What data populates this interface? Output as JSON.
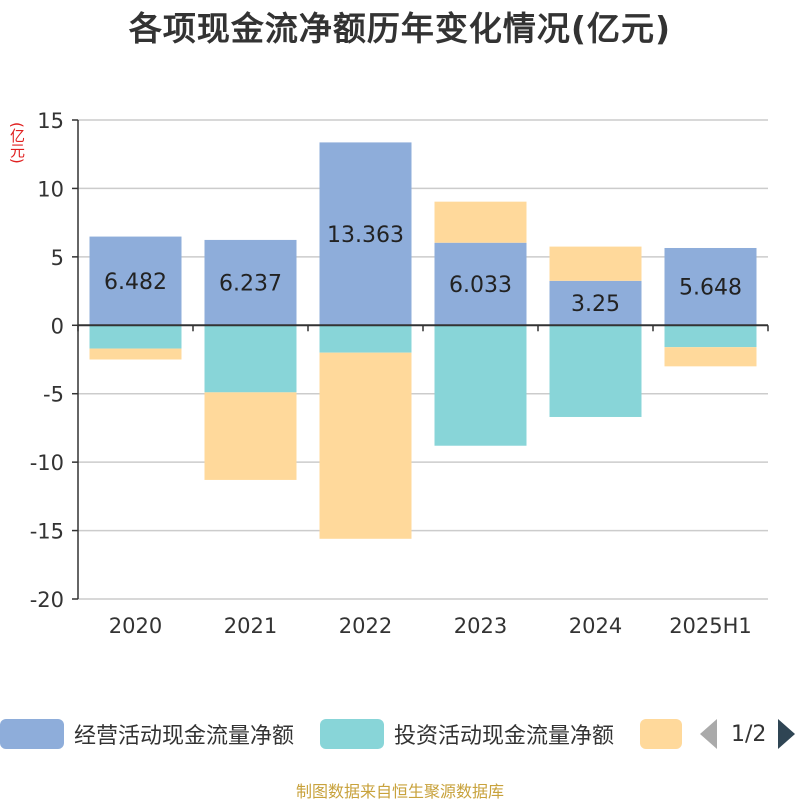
{
  "chart_data": {
    "type": "bar",
    "stacked": true,
    "title": "各项现金流净额历年变化情况(亿元)",
    "ylabel": "(亿元)",
    "categories": [
      "2020",
      "2021",
      "2022",
      "2023",
      "2024",
      "2025H1"
    ],
    "ylim": [
      -20,
      15
    ],
    "yticks": [
      15,
      10,
      5,
      0,
      -5,
      -10,
      -15,
      -20
    ],
    "grid": true,
    "series": [
      {
        "name": "经营活动现金流量净额",
        "color": "#8eadda",
        "values": [
          6.482,
          6.237,
          13.363,
          6.033,
          3.25,
          5.648
        ],
        "labels_shown": true
      },
      {
        "name": "投资活动现金流量净额",
        "color": "#88d5d8",
        "values": [
          -1.7,
          -4.9,
          -2.0,
          -8.8,
          -6.7,
          -1.6
        ],
        "labels_shown": false
      },
      {
        "name": "",
        "color": "#ffd99b",
        "values": [
          -0.8,
          -6.4,
          -13.6,
          3.0,
          2.5,
          -1.4
        ],
        "labels_shown": false
      }
    ],
    "legend_position": "bottom"
  },
  "legend": {
    "items": [
      {
        "label": "经营活动现金流量净额",
        "color": "#8eadda"
      },
      {
        "label": "投资活动现金流量净额",
        "color": "#88d5d8"
      },
      {
        "label": "",
        "color": "#ffd99b"
      }
    ],
    "page_indicator": "1/2"
  },
  "source_text": "制图数据来自恒生聚源数据库",
  "colors": {
    "axis": "#333333",
    "grid": "#cccccc"
  }
}
